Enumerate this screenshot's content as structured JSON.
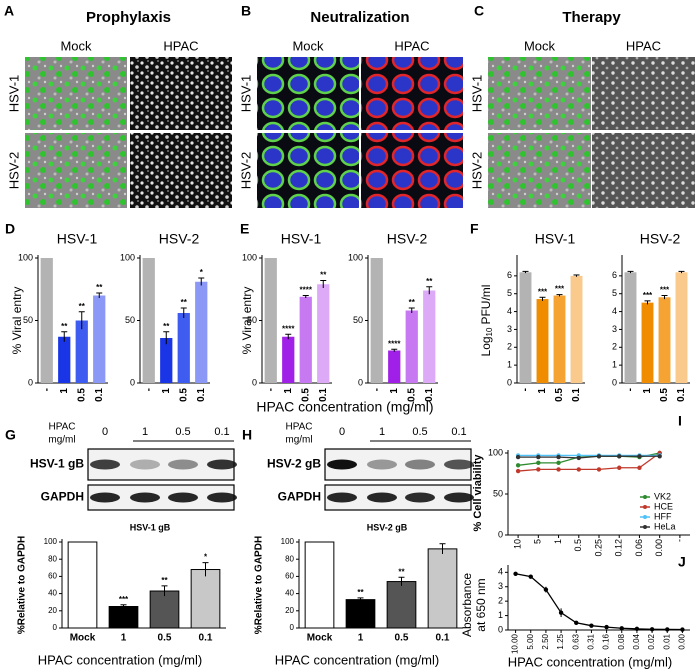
{
  "image_panels": [
    {
      "letter": "A",
      "title": "Prophylaxis",
      "columns": [
        "Mock",
        "HPAC"
      ],
      "rows": [
        "HSV-1",
        "HSV-2"
      ]
    },
    {
      "letter": "B",
      "title": "Neutralization",
      "columns": [
        "Mock",
        "HPAC"
      ],
      "rows": [
        "HSV-1",
        "HSV-2"
      ]
    },
    {
      "letter": "C",
      "title": "Therapy",
      "columns": [
        "Mock",
        "HPAC"
      ],
      "rows": [
        "HSV-1",
        "HSV-2"
      ]
    }
  ],
  "entry_panels": [
    {
      "letter": "D",
      "ylabel": "% Viral entry",
      "ylim": [
        0,
        100
      ],
      "yticks": [
        0,
        50,
        100
      ],
      "charts": [
        {
          "type": "bar",
          "title": "HSV-1",
          "categories": [
            "-",
            "1",
            "0.5",
            "0.1"
          ],
          "values": [
            100,
            37,
            50,
            70
          ],
          "errors": [
            0,
            4,
            7,
            2
          ],
          "annotations": [
            null,
            "**",
            "**",
            "**"
          ],
          "colors": [
            "#b3b3b3",
            "#1a35e6",
            "#3f5cf0",
            "#8b98f5"
          ]
        },
        {
          "type": "bar",
          "title": "HSV-2",
          "categories": [
            "-",
            "1",
            "0.5",
            "0.1"
          ],
          "values": [
            100,
            36,
            56,
            81
          ],
          "errors": [
            0,
            5,
            4,
            3
          ],
          "annotations": [
            null,
            "**",
            "**",
            "*"
          ],
          "colors": [
            "#b3b3b3",
            "#1a35e6",
            "#3f5cf0",
            "#8b98f5"
          ]
        }
      ]
    },
    {
      "letter": "E",
      "ylabel": "% Viral entry",
      "ylim": [
        0,
        100
      ],
      "yticks": [
        0,
        50,
        100
      ],
      "charts": [
        {
          "type": "bar",
          "title": "HSV-1",
          "categories": [
            "-",
            "1",
            "0.5",
            "0.1"
          ],
          "values": [
            100,
            37,
            69,
            79
          ],
          "errors": [
            0,
            2,
            1,
            3
          ],
          "annotations": [
            null,
            "****",
            "****",
            "**"
          ],
          "colors": [
            "#b3b3b3",
            "#a020e8",
            "#c779f2",
            "#dcaaf7"
          ]
        },
        {
          "type": "bar",
          "title": "HSV-2",
          "categories": [
            "-",
            "1",
            "0.5",
            "0.1"
          ],
          "values": [
            100,
            26,
            58,
            74
          ],
          "errors": [
            0,
            1,
            2,
            3
          ],
          "annotations": [
            null,
            "****",
            "**",
            "**"
          ],
          "colors": [
            "#b3b3b3",
            "#a020e8",
            "#c779f2",
            "#dcaaf7"
          ]
        }
      ]
    },
    {
      "letter": "F",
      "ylabel": [
        "Log",
        "10",
        "PFU/ml"
      ],
      "ylim": [
        0,
        7
      ],
      "yticks": [
        0,
        1,
        2,
        3,
        4,
        5,
        6
      ],
      "charts": [
        {
          "type": "bar",
          "title": "HSV-1",
          "categories": [
            "-",
            "1",
            "0.5",
            "0.1"
          ],
          "values": [
            6.2,
            4.7,
            4.9,
            6.0
          ],
          "errors": [
            0.05,
            0.1,
            0.05,
            0.05
          ],
          "annotations": [
            null,
            "***",
            "***",
            null
          ],
          "colors": [
            "#b3b3b3",
            "#f08c00",
            "#f5a434",
            "#fac98c"
          ]
        },
        {
          "type": "bar",
          "title": "HSV-2",
          "categories": [
            "-",
            "1",
            "0.5",
            "0.1"
          ],
          "values": [
            6.2,
            4.5,
            4.8,
            6.2
          ],
          "errors": [
            0.05,
            0.1,
            0.1,
            0.05
          ],
          "annotations": [
            null,
            "***",
            "***",
            null
          ],
          "colors": [
            "#b3b3b3",
            "#f08c00",
            "#f5a434",
            "#fac98c"
          ]
        }
      ]
    }
  ],
  "entry_xlabel": "HPAC concentration (mg/ml)",
  "blot_panels": [
    {
      "letter": "G",
      "header": [
        "HPAC",
        "mg/ml"
      ],
      "lanes": [
        "0",
        "1",
        "0.5",
        "0.1"
      ],
      "bands": [
        "HSV-1 gB",
        "GAPDH"
      ],
      "chart": {
        "type": "bar",
        "title": "HSV-1 gB",
        "ylabel": "%Relative to GAPDH",
        "ylim": [
          0,
          100
        ],
        "yticks": [
          0,
          20,
          40,
          60,
          80,
          100
        ],
        "categories": [
          "Mock",
          "1",
          "0.5",
          "0.1"
        ],
        "values": [
          100,
          25,
          43,
          68
        ],
        "errors": [
          0,
          2,
          6,
          8
        ],
        "annotations": [
          null,
          "***",
          "**",
          "*"
        ],
        "colors": [
          "#ffffff",
          "#000000",
          "#555555",
          "#c8c8c8"
        ]
      },
      "xlabel": "HPAC  concentration (mg/ml)"
    },
    {
      "letter": "H",
      "header": [
        "HPAC",
        "mg/ml"
      ],
      "lanes": [
        "0",
        "1",
        "0.5",
        "0.1"
      ],
      "bands": [
        "HSV-2 gB",
        "GAPDH"
      ],
      "chart": {
        "type": "bar",
        "title": "HSV-2 gB",
        "ylabel": "%Relative to GAPDH",
        "ylim": [
          0,
          100
        ],
        "yticks": [
          0,
          20,
          40,
          60,
          80,
          100
        ],
        "categories": [
          "Mock",
          "1",
          "0.5",
          "0.1"
        ],
        "values": [
          100,
          33,
          54,
          92
        ],
        "errors": [
          0,
          2,
          5,
          6
        ],
        "annotations": [
          null,
          "**",
          "**",
          null
        ],
        "colors": [
          "#ffffff",
          "#000000",
          "#555555",
          "#c8c8c8"
        ]
      },
      "xlabel": "HPAC  concentration (mg/ml)"
    }
  ],
  "viability": {
    "type": "line",
    "letter": "I",
    "ylabel": "% Cell viability",
    "ylim": [
      0,
      100
    ],
    "yticks": [
      0,
      50,
      100
    ],
    "legend": "lower right",
    "categories": [
      "10",
      "5",
      "1",
      "0.5",
      "0.25",
      "0.12",
      "0.06",
      "0.00",
      "-"
    ],
    "series": [
      {
        "name": "VK2",
        "color": "#2e8b2e",
        "values": [
          85,
          88,
          88,
          95,
          96,
          96,
          95,
          100,
          null
        ]
      },
      {
        "name": "HCE",
        "color": "#c0392b",
        "values": [
          78,
          80,
          80,
          80,
          80,
          82,
          82,
          100,
          null
        ]
      },
      {
        "name": "HFF",
        "color": "#4fc3f7",
        "values": [
          97,
          97,
          97,
          97,
          97,
          97,
          97,
          97,
          null
        ]
      },
      {
        "name": "HeLa",
        "color": "#333333",
        "values": [
          95,
          95,
          95,
          94,
          96,
          96,
          96,
          96,
          null
        ]
      }
    ]
  },
  "absorbance": {
    "type": "line",
    "letter": "J",
    "ylabel": [
      "Absorbance",
      "at 650 nm"
    ],
    "ylim": [
      0,
      4.3
    ],
    "yticks": [
      0,
      1,
      2,
      3,
      4
    ],
    "categories": [
      "10.00",
      "5.00",
      "2.50",
      "1.25",
      "0.63",
      "0.31",
      "0.16",
      "0.08",
      "0.04",
      "0.02",
      "0.01",
      "0.00"
    ],
    "values": [
      3.9,
      3.7,
      2.8,
      1.2,
      0.5,
      0.3,
      0.2,
      0.12,
      0.08,
      0.05,
      0.04,
      0.03
    ],
    "errors": [
      0.1,
      0.1,
      0.2,
      0.3,
      0.1,
      0.05,
      0.05,
      0.03,
      0.02,
      0.02,
      0.01,
      0.01
    ],
    "color": "#000000",
    "xlabel": "HPAC concentration (mg/ml)"
  }
}
